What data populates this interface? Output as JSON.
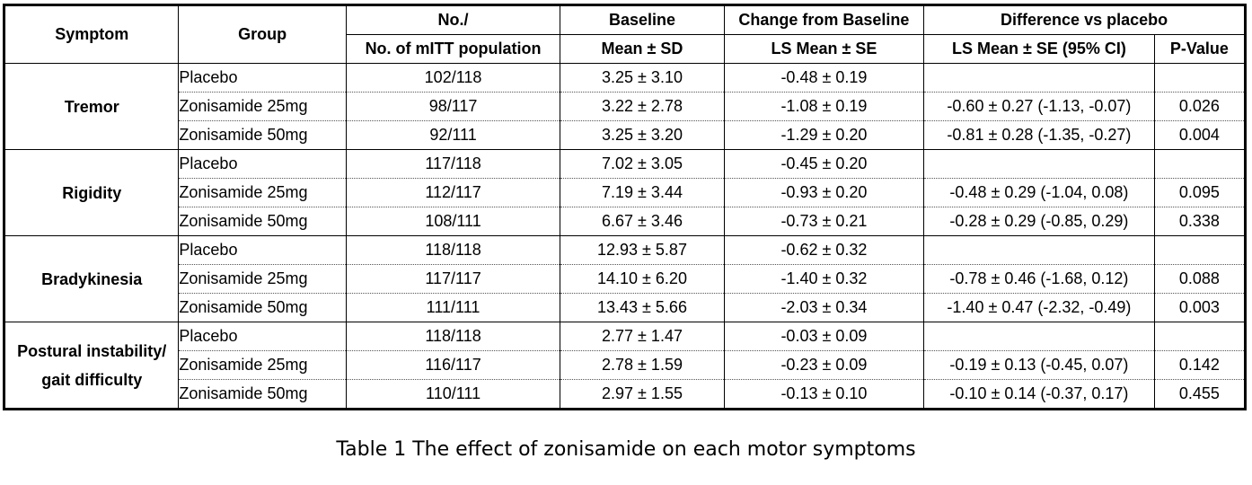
{
  "header": {
    "symptom": "Symptom",
    "group": "Group",
    "no_line1": "No./",
    "no_line2": "No. of mITT population",
    "baseline": "Baseline",
    "baseline_sub": "Mean ± SD",
    "change": "Change from Baseline",
    "change_sub": "LS Mean ± SE",
    "difference": "Difference vs placebo",
    "diff_sub": "LS Mean ± SE (95% CI)",
    "pvalue": "P-Value"
  },
  "groups": [
    {
      "symptom_line1": "Tremor",
      "symptom_line2": "",
      "rows": [
        {
          "group": "Placebo",
          "n": "102/118",
          "baseline": "3.25 ± 3.10",
          "change": "-0.48 ± 0.19",
          "diff": "",
          "p": ""
        },
        {
          "group": "Zonisamide 25mg",
          "n": "98/117",
          "baseline": "3.22 ± 2.78",
          "change": "-1.08 ± 0.19",
          "diff": "-0.60 ± 0.27 (-1.13, -0.07)",
          "p": "0.026"
        },
        {
          "group": "Zonisamide 50mg",
          "n": "92/111",
          "baseline": "3.25 ± 3.20",
          "change": "-1.29 ± 0.20",
          "diff": "-0.81 ± 0.28 (-1.35, -0.27)",
          "p": "0.004"
        }
      ]
    },
    {
      "symptom_line1": "Rigidity",
      "symptom_line2": "",
      "rows": [
        {
          "group": "Placebo",
          "n": "117/118",
          "baseline": "7.02 ± 3.05",
          "change": "-0.45 ± 0.20",
          "diff": "",
          "p": ""
        },
        {
          "group": "Zonisamide 25mg",
          "n": "112/117",
          "baseline": "7.19 ± 3.44",
          "change": "-0.93 ± 0.20",
          "diff": "-0.48 ± 0.29 (-1.04, 0.08)",
          "p": "0.095"
        },
        {
          "group": "Zonisamide 50mg",
          "n": "108/111",
          "baseline": "6.67 ± 3.46",
          "change": "-0.73 ± 0.21",
          "diff": "-0.28 ± 0.29 (-0.85, 0.29)",
          "p": "0.338"
        }
      ]
    },
    {
      "symptom_line1": "Bradykinesia",
      "symptom_line2": "",
      "rows": [
        {
          "group": "Placebo",
          "n": "118/118",
          "baseline": "12.93 ± 5.87",
          "change": "-0.62 ± 0.32",
          "diff": "",
          "p": ""
        },
        {
          "group": "Zonisamide 25mg",
          "n": "117/117",
          "baseline": "14.10 ± 6.20",
          "change": "-1.40 ± 0.32",
          "diff": "-0.78 ± 0.46 (-1.68, 0.12)",
          "p": "0.088"
        },
        {
          "group": "Zonisamide 50mg",
          "n": "111/111",
          "baseline": "13.43 ± 5.66",
          "change": "-2.03 ± 0.34",
          "diff": "-1.40 ± 0.47 (-2.32, -0.49)",
          "p": "0.003"
        }
      ]
    },
    {
      "symptom_line1": "Postural instability/",
      "symptom_line2": "gait difficulty",
      "rows": [
        {
          "group": "Placebo",
          "n": "118/118",
          "baseline": "2.77 ± 1.47",
          "change": "-0.03 ± 0.09",
          "diff": "",
          "p": ""
        },
        {
          "group": "Zonisamide 25mg",
          "n": "116/117",
          "baseline": "2.78 ± 1.59",
          "change": "-0.23 ± 0.09",
          "diff": "-0.19 ± 0.13 (-0.45, 0.07)",
          "p": "0.142"
        },
        {
          "group": "Zonisamide 50mg",
          "n": "110/111",
          "baseline": "2.97 ± 1.55",
          "change": "-0.13 ± 0.10",
          "diff": "-0.10 ± 0.14 (-0.37, 0.17)",
          "p": "0.455"
        }
      ]
    }
  ],
  "caption": "Table 1  The effect of zonisamide on each motor symptoms"
}
